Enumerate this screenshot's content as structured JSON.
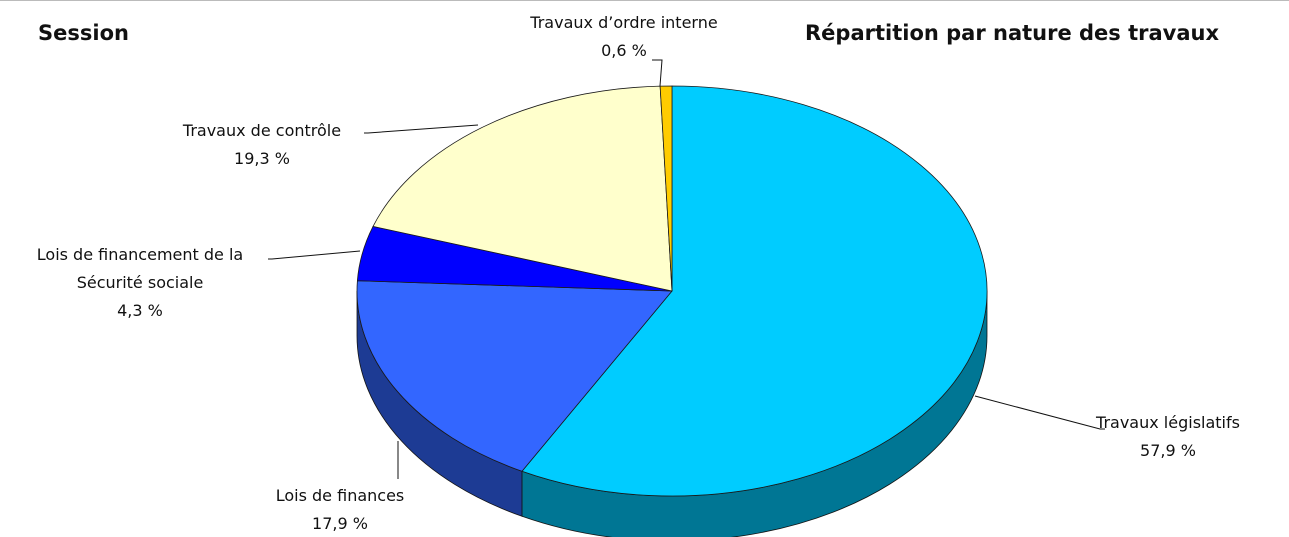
{
  "chart_data": {
    "type": "pie3d",
    "title": "Répartition par nature des travaux",
    "subtitle": "Session",
    "categories": [
      "Travaux législatifs",
      "Lois de finances",
      "Lois de financement de la Sécurité sociale",
      "Travaux de contrôle",
      "Travaux d’ordre interne"
    ],
    "values": [
      57.9,
      17.9,
      4.3,
      19.3,
      0.6
    ],
    "value_labels": [
      "57,9 %",
      "17,9 %",
      "4,3 %",
      "19,3 %",
      "0,6 %"
    ],
    "colors": [
      "#00ccff",
      "#3366ff",
      "#0000ff",
      "#ffffcc",
      "#ffcc00"
    ]
  }
}
